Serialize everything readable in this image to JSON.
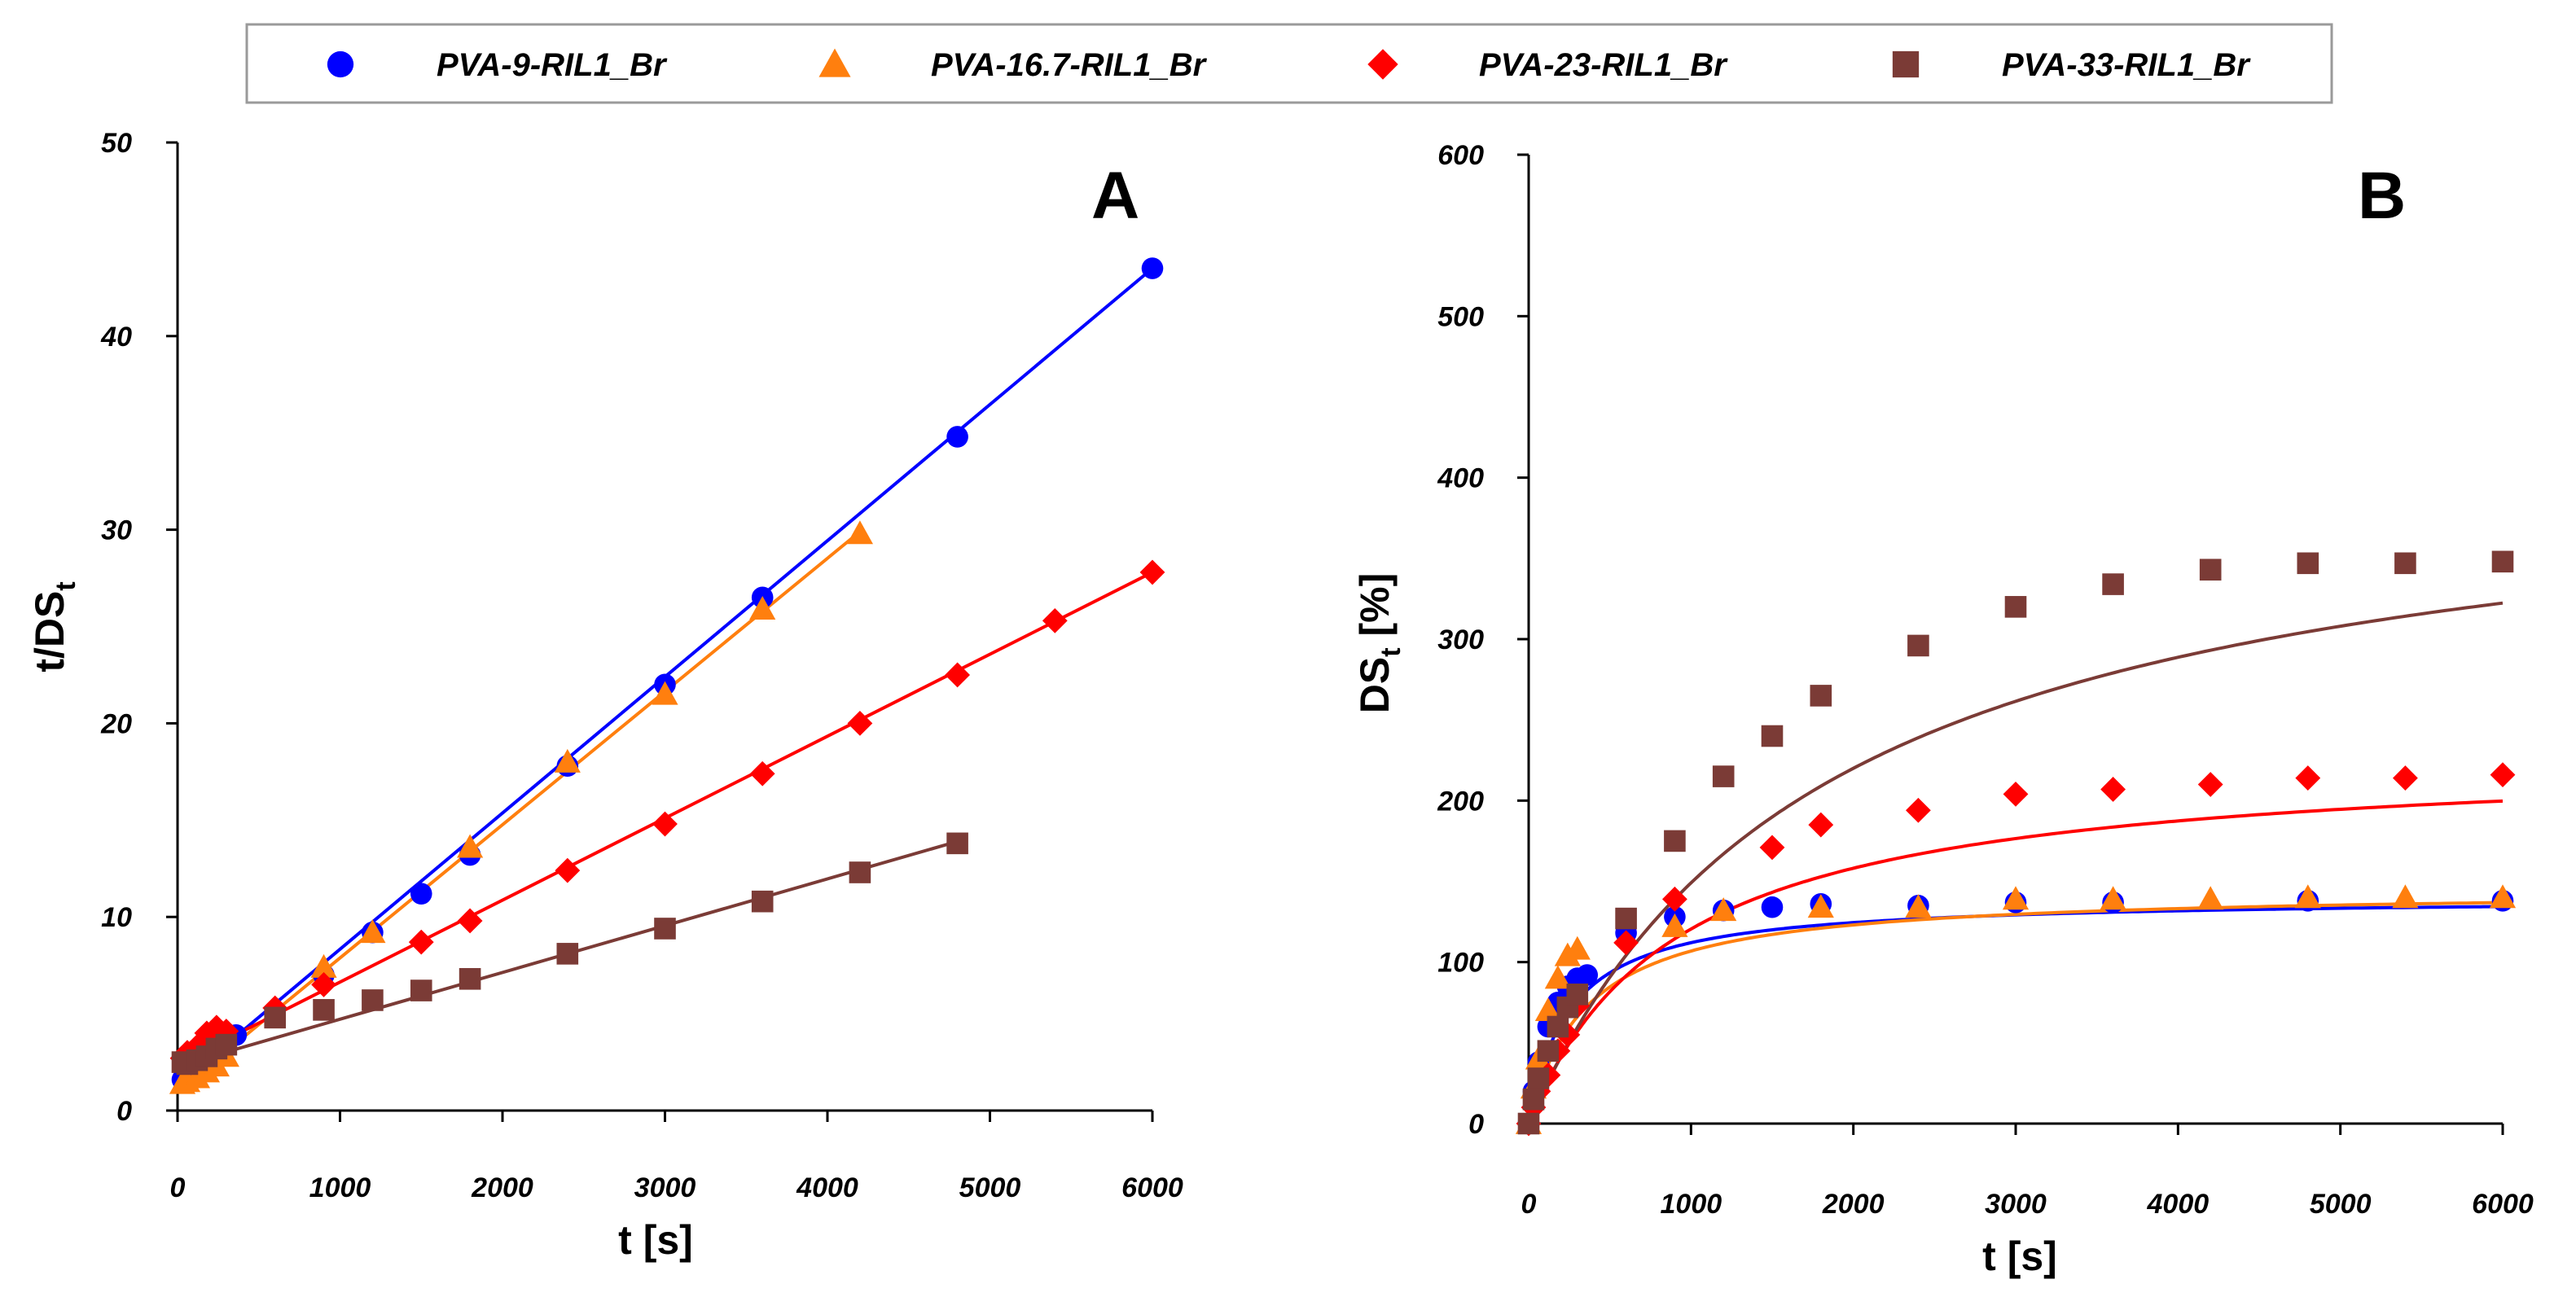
{
  "legend": {
    "entries": [
      {
        "label": "PVA-9-RIL1_Br",
        "color": "#0000ff",
        "marker": "circle"
      },
      {
        "label": "PVA-16.7-RIL1_Br",
        "color": "#ff7f0e",
        "marker": "triangle"
      },
      {
        "label": "PVA-23-RIL1_Br",
        "color": "#ff0000",
        "marker": "diamond"
      },
      {
        "label": "PVA-33-RIL1_Br",
        "color": "#7b3b36",
        "marker": "square"
      }
    ]
  },
  "chart_data": [
    {
      "type": "scatter",
      "panel": "A",
      "xlabel": "t [s]",
      "ylabel_main": "t/DS",
      "ylabel_sub": "t",
      "xlim": [
        0,
        6000
      ],
      "ylim": [
        0,
        50
      ],
      "xticks": [
        0,
        1000,
        2000,
        3000,
        4000,
        5000,
        6000
      ],
      "yticks": [
        0,
        10,
        20,
        30,
        40,
        50
      ],
      "grid": false,
      "series": [
        {
          "name": "PVA-9-RIL1_Br",
          "x": [
            30,
            60,
            120,
            180,
            240,
            300,
            360,
            600,
            900,
            1200,
            1500,
            1800,
            2400,
            3000,
            3600,
            4800,
            6000
          ],
          "y": [
            1.6,
            1.7,
            2.0,
            2.4,
            2.8,
            3.3,
            3.9,
            5.0,
            7.0,
            9.2,
            11.2,
            13.2,
            17.8,
            22.0,
            26.5,
            34.8,
            43.5
          ],
          "fit": [
            [
              0,
              1.3
            ],
            [
              6000,
              43.5
            ]
          ]
        },
        {
          "name": "PVA-16.7-RIL1_Br",
          "x": [
            30,
            60,
            120,
            180,
            240,
            300,
            900,
            1200,
            1800,
            2400,
            3000,
            3600,
            4200
          ],
          "y": [
            1.4,
            1.5,
            1.7,
            2.0,
            2.3,
            2.8,
            7.4,
            9.2,
            13.6,
            18.0,
            21.5,
            25.9,
            29.8
          ],
          "fit": [
            [
              0,
              1.0
            ],
            [
              4200,
              29.9
            ]
          ]
        },
        {
          "name": "PVA-23-RIL1_Br",
          "x": [
            30,
            60,
            120,
            180,
            240,
            300,
            600,
            900,
            1500,
            1800,
            2400,
            3000,
            3600,
            4200,
            4800,
            5400,
            6000
          ],
          "y": [
            2.7,
            3.0,
            3.3,
            4.0,
            4.3,
            4.1,
            5.3,
            6.5,
            8.7,
            9.8,
            12.4,
            14.8,
            17.4,
            20.0,
            22.5,
            25.3,
            27.8
          ],
          "fit": [
            [
              0,
              2.4
            ],
            [
              6000,
              27.8
            ]
          ]
        },
        {
          "name": "PVA-33-RIL1_Br",
          "x": [
            30,
            60,
            120,
            180,
            240,
            300,
            600,
            900,
            1200,
            1500,
            1800,
            2400,
            3000,
            3600,
            4200,
            4800
          ],
          "y": [
            2.5,
            2.4,
            2.6,
            2.8,
            3.2,
            3.4,
            4.8,
            5.2,
            5.7,
            6.2,
            6.8,
            8.1,
            9.4,
            10.8,
            12.3,
            13.8
          ],
          "fit": [
            [
              0,
              2.3
            ],
            [
              4800,
              13.9
            ]
          ]
        }
      ]
    },
    {
      "type": "scatter",
      "panel": "B",
      "xlabel": "t [s]",
      "ylabel_main": "DS",
      "ylabel_sub": "t",
      "ylabel_rest": " [%]",
      "xlim": [
        0,
        6000
      ],
      "ylim": [
        0,
        600
      ],
      "xticks": [
        0,
        1000,
        2000,
        3000,
        4000,
        5000,
        6000
      ],
      "yticks": [
        0,
        100,
        200,
        300,
        400,
        500,
        600
      ],
      "grid": false,
      "series": [
        {
          "name": "PVA-9-RIL1_Br",
          "x": [
            0,
            30,
            60,
            120,
            180,
            240,
            300,
            360,
            600,
            900,
            1200,
            1500,
            1800,
            2400,
            3000,
            3600,
            4800,
            6000
          ],
          "y": [
            0,
            20,
            38,
            60,
            75,
            85,
            90,
            92,
            118,
            128,
            132,
            134,
            136,
            135,
            137,
            137,
            138,
            138
          ],
          "fit_model": {
            "a": 140,
            "k": 0.004
          }
        },
        {
          "name": "PVA-16.7-RIL1_Br",
          "x": [
            0,
            30,
            60,
            120,
            180,
            240,
            300,
            900,
            1200,
            1800,
            2400,
            3000,
            3600,
            4200,
            4800,
            5400,
            6000
          ],
          "y": [
            0,
            22,
            40,
            70,
            90,
            104,
            108,
            122,
            132,
            134,
            134,
            139,
            139,
            139,
            140,
            140,
            140
          ],
          "fit_model": {
            "a": 145,
            "k": 0.0028
          }
        },
        {
          "name": "PVA-23-RIL1_Br",
          "x": [
            0,
            30,
            60,
            120,
            180,
            240,
            300,
            600,
            900,
            1500,
            1800,
            2400,
            3000,
            3600,
            4200,
            4800,
            5400,
            6000
          ],
          "y": [
            0,
            10,
            20,
            30,
            45,
            55,
            73,
            112,
            139,
            171,
            185,
            194,
            204,
            207,
            210,
            214,
            214,
            216
          ],
          "fit_model": {
            "a": 230,
            "k": 0.0011
          }
        },
        {
          "name": "PVA-33-RIL1_Br",
          "x": [
            0,
            30,
            60,
            120,
            180,
            240,
            300,
            600,
            900,
            1200,
            1500,
            1800,
            2400,
            3000,
            3600,
            4200,
            4800,
            5400,
            6000
          ],
          "y": [
            0,
            15,
            28,
            45,
            60,
            72,
            80,
            127,
            175,
            215,
            240,
            265,
            296,
            320,
            334,
            343,
            347,
            347,
            348
          ],
          "fit_model": {
            "a": 420,
            "k": 0.00055
          }
        }
      ]
    }
  ],
  "panels": {
    "a_letter": "A",
    "b_letter": "B"
  }
}
